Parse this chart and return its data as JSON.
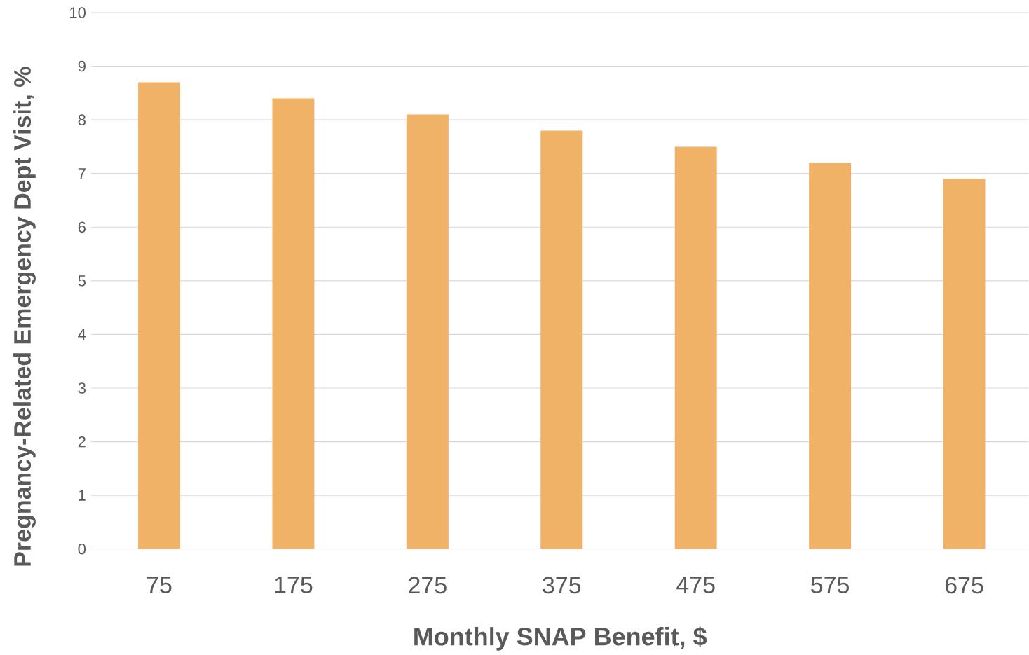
{
  "chart_data": {
    "type": "bar",
    "xlabel": "Monthly SNAP Benefit, $",
    "ylabel": "Pregnancy-Related Emergency Dept Visit, %",
    "categories": [
      "75",
      "175",
      "275",
      "375",
      "475",
      "575",
      "675"
    ],
    "values": [
      8.7,
      8.4,
      8.1,
      7.8,
      7.5,
      7.2,
      6.9
    ],
    "color": "#f0b266",
    "ylim": [
      0,
      10
    ],
    "yticks": [
      0,
      1,
      2,
      3,
      4,
      5,
      6,
      7,
      8,
      9,
      10
    ],
    "grid": "y"
  }
}
